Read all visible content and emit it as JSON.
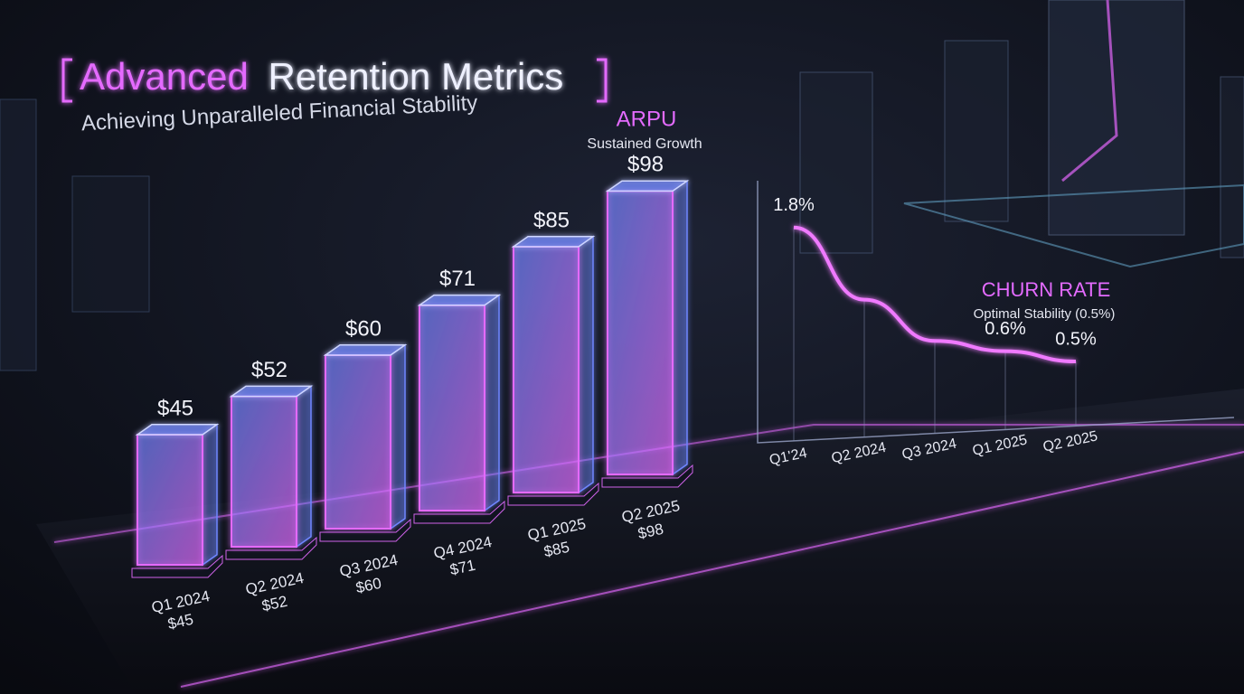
{
  "header": {
    "title_accent": "Advanced",
    "title": "Retention Metrics",
    "subtitle": "Achieving Unparalleled Financial Stability"
  },
  "chart_data": [
    {
      "type": "bar",
      "title": "ARPU",
      "subtitle": "Sustained Growth",
      "categories": [
        "Q1 2024",
        "Q2 2024",
        "Q3 2024",
        "Q4 2024",
        "Q1 2025",
        "Q2 2025"
      ],
      "values": [
        45,
        52,
        60,
        71,
        85,
        98
      ],
      "value_labels": [
        "$45",
        "$52",
        "$60",
        "$71",
        "$85",
        "$98"
      ],
      "color": "#6f86ff",
      "accent": "#e46bff"
    },
    {
      "type": "line",
      "title": "CHURN RATE",
      "subtitle": "Optimal Stability (0.5%)",
      "categories": [
        "Q1'24",
        "Q2 2024",
        "Q3 2024",
        "Q1 2025",
        "Q2 2025"
      ],
      "values": [
        1.8,
        1.1,
        0.7,
        0.6,
        0.5
      ],
      "value_labels": [
        "1.8%",
        null,
        null,
        "0.6%",
        "0.5%"
      ],
      "color": "#f07aff"
    }
  ]
}
